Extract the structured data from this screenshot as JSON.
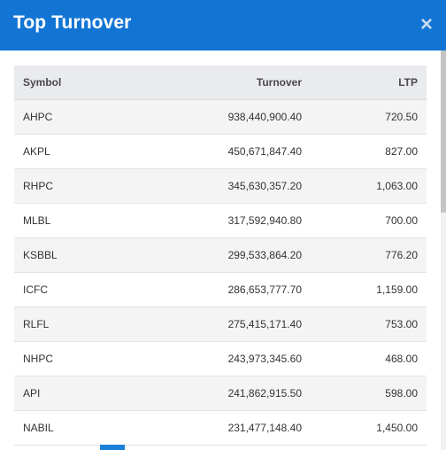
{
  "modal": {
    "title": "Top Turnover",
    "close_glyph": "×"
  },
  "table": {
    "headers": {
      "symbol": "Symbol",
      "turnover": "Turnover",
      "ltp": "LTP"
    },
    "rows": [
      {
        "symbol": "AHPC",
        "turnover": "938,440,900.40",
        "ltp": "720.50"
      },
      {
        "symbol": "AKPL",
        "turnover": "450,671,847.40",
        "ltp": "827.00"
      },
      {
        "symbol": "RHPC",
        "turnover": "345,630,357.20",
        "ltp": "1,063.00"
      },
      {
        "symbol": "MLBL",
        "turnover": "317,592,940.80",
        "ltp": "700.00"
      },
      {
        "symbol": "KSBBL",
        "turnover": "299,533,864.20",
        "ltp": "776.20"
      },
      {
        "symbol": "ICFC",
        "turnover": "286,653,777.70",
        "ltp": "1,159.00"
      },
      {
        "symbol": "RLFL",
        "turnover": "275,415,171.40",
        "ltp": "753.00"
      },
      {
        "symbol": "NHPC",
        "turnover": "243,973,345.60",
        "ltp": "468.00"
      },
      {
        "symbol": "API",
        "turnover": "241,862,915.50",
        "ltp": "598.00"
      },
      {
        "symbol": "NABIL",
        "turnover": "231,477,148.40",
        "ltp": "1,450.00"
      }
    ]
  },
  "colors": {
    "header_bg": "#1275d4",
    "header_text": "#ffffff",
    "page_active": "#1a80d9"
  }
}
